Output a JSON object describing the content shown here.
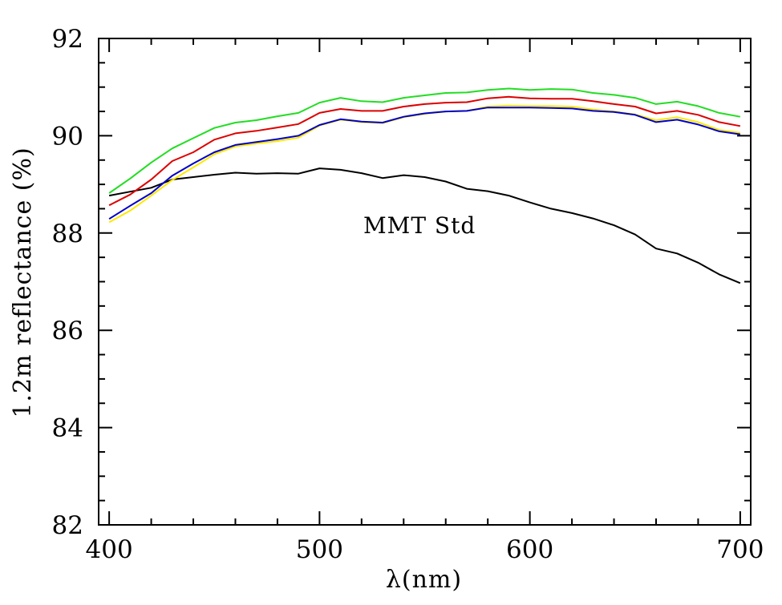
{
  "chart_data": {
    "type": "line",
    "title": "",
    "xlabel": "λ(nm)",
    "ylabel": "1.2m reflectance (%)",
    "xlim": [
      395,
      705
    ],
    "ylim": [
      82,
      92
    ],
    "x_major_ticks": [
      400,
      500,
      600,
      700
    ],
    "x_tick_labels": [
      "400",
      "500",
      "600",
      "700"
    ],
    "x_minor_step": 20,
    "y_major_ticks": [
      82,
      84,
      86,
      88,
      90,
      92
    ],
    "y_tick_labels": [
      "82",
      "84",
      "86",
      "88",
      "90",
      "92"
    ],
    "y_minor_step": 0.5,
    "grid": false,
    "legend": null,
    "annotations": [
      {
        "text": "MMT Std",
        "x": 520,
        "y": 88.1,
        "refers_to": "black"
      }
    ],
    "x": [
      400,
      410,
      420,
      430,
      440,
      450,
      460,
      470,
      480,
      490,
      500,
      510,
      520,
      530,
      540,
      550,
      560,
      570,
      580,
      590,
      600,
      610,
      620,
      630,
      640,
      650,
      660,
      670,
      680,
      690,
      700
    ],
    "series": [
      {
        "name": "black",
        "color": "#000000",
        "values": [
          88.77,
          88.85,
          88.93,
          89.1,
          89.15,
          89.2,
          89.24,
          89.22,
          89.23,
          89.22,
          89.33,
          89.3,
          89.23,
          89.13,
          89.19,
          89.15,
          89.06,
          88.91,
          88.86,
          88.77,
          88.63,
          88.5,
          88.41,
          88.3,
          88.16,
          87.97,
          87.68,
          87.58,
          87.39,
          87.15,
          86.97
        ]
      },
      {
        "name": "yellow",
        "color": "#ffe800",
        "values": [
          88.22,
          88.46,
          88.77,
          89.09,
          89.35,
          89.62,
          89.78,
          89.84,
          89.89,
          89.96,
          90.21,
          90.33,
          90.28,
          90.26,
          90.38,
          90.45,
          90.5,
          90.51,
          90.6,
          90.62,
          90.61,
          90.61,
          90.6,
          90.54,
          90.5,
          90.44,
          90.32,
          90.38,
          90.28,
          90.12,
          90.06
        ]
      },
      {
        "name": "blue",
        "color": "#0000c8",
        "values": [
          88.29,
          88.56,
          88.82,
          89.18,
          89.43,
          89.66,
          89.81,
          89.87,
          89.93,
          90.0,
          90.22,
          90.34,
          90.29,
          90.27,
          90.39,
          90.46,
          90.5,
          90.51,
          90.58,
          90.58,
          90.58,
          90.57,
          90.56,
          90.51,
          90.49,
          90.43,
          90.28,
          90.33,
          90.23,
          90.09,
          90.03
        ]
      },
      {
        "name": "red",
        "color": "#dd0000",
        "values": [
          88.57,
          88.79,
          89.1,
          89.48,
          89.66,
          89.92,
          90.05,
          90.1,
          90.17,
          90.24,
          90.47,
          90.55,
          90.51,
          90.51,
          90.6,
          90.65,
          90.68,
          90.69,
          90.77,
          90.8,
          90.77,
          90.76,
          90.76,
          90.71,
          90.65,
          90.6,
          90.46,
          90.51,
          90.43,
          90.28,
          90.2
        ]
      },
      {
        "name": "green",
        "color": "#22dd22",
        "values": [
          88.82,
          89.12,
          89.45,
          89.74,
          89.95,
          90.16,
          90.27,
          90.32,
          90.4,
          90.47,
          90.68,
          90.78,
          90.71,
          90.69,
          90.78,
          90.83,
          90.88,
          90.89,
          90.94,
          90.97,
          90.94,
          90.96,
          90.95,
          90.88,
          90.84,
          90.78,
          90.65,
          90.7,
          90.61,
          90.47,
          90.39
        ]
      }
    ]
  }
}
